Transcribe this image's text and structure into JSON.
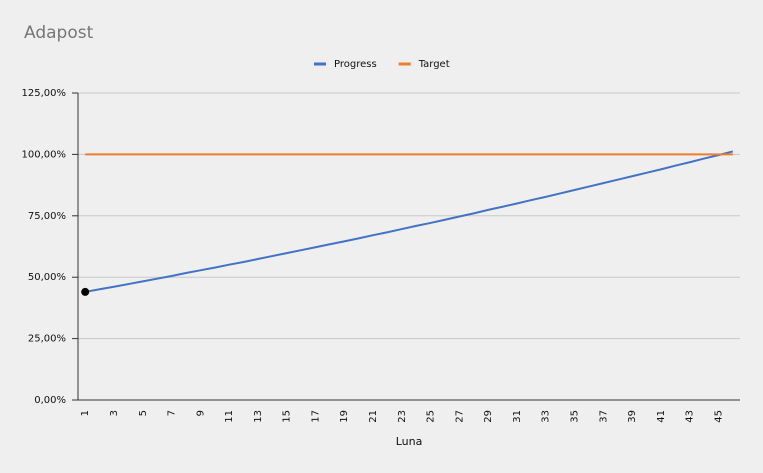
{
  "chart_data": {
    "type": "line",
    "title": "Adapost",
    "x_label": "Luna",
    "categories": [
      1,
      null,
      3,
      null,
      5,
      null,
      7,
      null,
      9,
      null,
      11,
      null,
      13,
      null,
      15,
      null,
      17,
      null,
      19,
      null,
      21,
      null,
      23,
      null,
      25,
      null,
      27,
      null,
      29,
      null,
      31,
      null,
      33,
      null,
      35,
      null,
      37,
      null,
      39,
      null,
      41,
      null,
      43,
      null,
      45,
      null
    ],
    "series": [
      {
        "name": "Progress",
        "color": "#4472c4",
        "values": [
          44.0,
          45.1,
          46.1,
          47.2,
          48.3,
          49.4,
          50.5,
          51.7,
          52.8,
          53.9,
          55.1,
          56.2,
          57.4,
          58.6,
          59.8,
          61.0,
          62.2,
          63.4,
          64.6,
          65.8,
          67.1,
          68.3,
          69.6,
          70.9,
          72.1,
          73.4,
          74.7,
          76.0,
          77.4,
          78.7,
          80.0,
          81.4,
          82.7,
          84.1,
          85.5,
          86.9,
          88.3,
          89.7,
          91.1,
          92.5,
          93.9,
          95.4,
          96.8,
          98.3,
          99.7,
          101.2
        ]
      },
      {
        "name": "Target",
        "color": "#ed7d31",
        "values": [
          100,
          100,
          100,
          100,
          100,
          100,
          100,
          100,
          100,
          100,
          100,
          100,
          100,
          100,
          100,
          100,
          100,
          100,
          100,
          100,
          100,
          100,
          100,
          100,
          100,
          100,
          100,
          100,
          100,
          100,
          100,
          100,
          100,
          100,
          100,
          100,
          100,
          100,
          100,
          100,
          100,
          100,
          100,
          100,
          100,
          100
        ]
      }
    ],
    "highlight": {
      "series": 0,
      "index": 0,
      "color": "#000000"
    },
    "ylim": [
      0,
      125
    ],
    "yticks": [
      {
        "value": 0,
        "label": "0,00%"
      },
      {
        "value": 25,
        "label": "25,00%"
      },
      {
        "value": 50,
        "label": "50,00%"
      },
      {
        "value": 75,
        "label": "75,00%"
      },
      {
        "value": 100,
        "label": "100,00%"
      },
      {
        "value": 125,
        "label": "125,00%"
      }
    ],
    "grid": true,
    "legend": "top"
  }
}
